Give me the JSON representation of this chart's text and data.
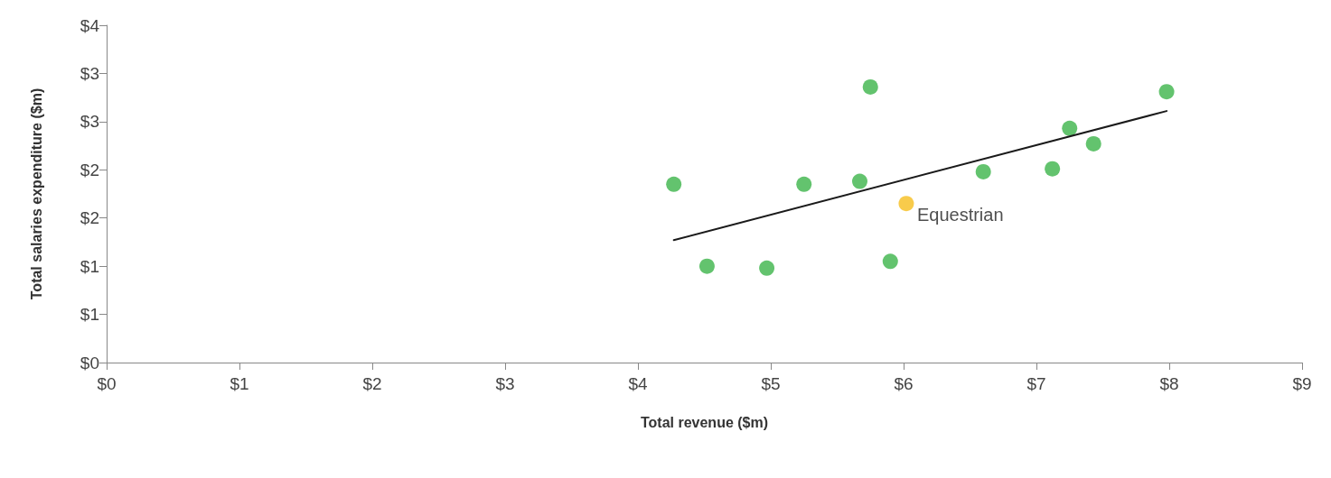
{
  "chart_data": {
    "type": "scatter",
    "xlabel": "Total revenue ($m)",
    "ylabel": "Total salaries expenditure ($m)",
    "xlim": [
      0,
      9
    ],
    "xticks": [
      {
        "value": 0,
        "label": "$0"
      },
      {
        "value": 1,
        "label": "$1"
      },
      {
        "value": 2,
        "label": "$2"
      },
      {
        "value": 3,
        "label": "$3"
      },
      {
        "value": 4,
        "label": "$4"
      },
      {
        "value": 5,
        "label": "$5"
      },
      {
        "value": 6,
        "label": "$6"
      },
      {
        "value": 7,
        "label": "$7"
      },
      {
        "value": 8,
        "label": "$8"
      },
      {
        "value": 9,
        "label": "$9"
      }
    ],
    "ylim": [
      0,
      3.5
    ],
    "yticks": [
      {
        "value": 0,
        "label": "$0"
      },
      {
        "value": 0.5,
        "label": "$1"
      },
      {
        "value": 1,
        "label": "$1"
      },
      {
        "value": 1.5,
        "label": "$2"
      },
      {
        "value": 2,
        "label": "$2"
      },
      {
        "value": 2.5,
        "label": "$3"
      },
      {
        "value": 3,
        "label": "$3"
      },
      {
        "value": 3.5,
        "label": "$4"
      }
    ],
    "grid": false,
    "marker": "circle",
    "series": [
      {
        "color": "#3cb44a",
        "x": [
          4.27,
          4.52,
          4.97,
          5.25,
          5.67,
          5.75,
          5.9,
          6.6,
          7.12,
          7.25,
          7.43,
          7.98
        ],
        "values": [
          1.85,
          1.0,
          0.98,
          1.85,
          1.88,
          2.86,
          1.05,
          1.98,
          2.01,
          2.43,
          2.27,
          2.81
        ]
      },
      {
        "color": "#f6be1e",
        "x": [
          6.02
        ],
        "values": [
          1.65
        ]
      },
      {
        "type": "line",
        "color": "#1a1a1a",
        "x": [
          4.27,
          7.98
        ],
        "values": [
          1.27,
          2.61
        ],
        "marker": "none",
        "line_style": "solid"
      }
    ],
    "annotations": [
      {
        "text": "Equestrian",
        "x": 6.02,
        "y": 1.65
      }
    ]
  }
}
